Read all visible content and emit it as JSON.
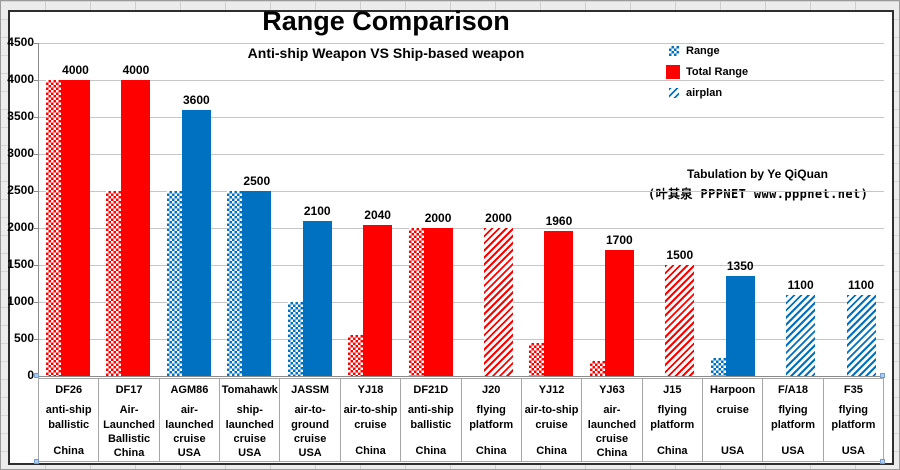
{
  "colors": {
    "red": "#ff0000",
    "blue": "#0070c0",
    "grid": "#c6c6c6",
    "axis": "#8a8a8a",
    "cell_border": "#a6a6a6",
    "handle": "#b5cce8"
  },
  "chart": {
    "title": "Range Comparison",
    "subtitle": "Anti-ship Weapon VS Ship-based weapon"
  },
  "legend": {
    "items": [
      {
        "label": "Range",
        "swatch": "checker-blue"
      },
      {
        "label": "Total Range",
        "swatch": "solid-red"
      },
      {
        "label": "airplan",
        "swatch": "hatch-blue"
      }
    ]
  },
  "annotation": {
    "line1": "Tabulation by Ye QiQuan",
    "line2": "(叶其泉 PPPNET www.pppnet.net)"
  },
  "chart_data": {
    "type": "bar",
    "title": "Range Comparison",
    "subtitle": "Anti-ship Weapon VS Ship-based weapon",
    "ylim": [
      0,
      4500
    ],
    "ytick_step": 500,
    "yticks": [
      "4500",
      "4000",
      "3500",
      "3000",
      "2500",
      "2000",
      "1500",
      "1000",
      "500",
      "0"
    ],
    "grid": true,
    "legend_position": "top-right",
    "categories": [
      {
        "name": "DF26",
        "type": "anti-ship\nballistic",
        "country": "China",
        "color": "red"
      },
      {
        "name": "DF17",
        "type": "Air-\nLaunched\nBallistic",
        "country": "China",
        "color": "red"
      },
      {
        "name": "AGM86",
        "type": "air-\nlaunched\ncruise",
        "country": "USA",
        "color": "blue"
      },
      {
        "name": "Tomahawk",
        "type": "ship-\nlaunched\ncruise",
        "country": "USA",
        "color": "blue"
      },
      {
        "name": "JASSM",
        "type": "air-to-\nground\ncruise",
        "country": "USA",
        "color": "blue"
      },
      {
        "name": "YJ18",
        "type": "air-to-ship\ncruise",
        "country": "China",
        "color": "red"
      },
      {
        "name": "DF21D",
        "type": "anti-ship\nballistic",
        "country": "China",
        "color": "red"
      },
      {
        "name": "J20",
        "type": "flying\nplatform",
        "country": "China",
        "color": "red"
      },
      {
        "name": "YJ12",
        "type": "air-to-ship\ncruise",
        "country": "China",
        "color": "red"
      },
      {
        "name": "YJ63",
        "type": "air-\nlaunched\ncruise",
        "country": "China",
        "color": "red"
      },
      {
        "name": "J15",
        "type": "flying\nplatform",
        "country": "China",
        "color": "red"
      },
      {
        "name": "Harpoon",
        "type": "cruise",
        "country": "USA",
        "color": "blue"
      },
      {
        "name": "F/A18",
        "type": "flying\nplatform",
        "country": "USA",
        "color": "blue"
      },
      {
        "name": "F35",
        "type": "flying\nplatform",
        "country": "USA",
        "color": "blue"
      }
    ],
    "series": [
      {
        "name": "Range",
        "pattern": "checker",
        "values": [
          4000,
          2500,
          2500,
          2500,
          1000,
          550,
          2000,
          null,
          450,
          200,
          null,
          250,
          null,
          null
        ]
      },
      {
        "name": "Total Range",
        "pattern": "solid",
        "values": [
          4000,
          4000,
          3600,
          2500,
          2100,
          2040,
          2000,
          null,
          1960,
          1700,
          null,
          1350,
          null,
          null
        ]
      },
      {
        "name": "airplan",
        "pattern": "hatch",
        "values": [
          null,
          null,
          null,
          null,
          null,
          null,
          null,
          2000,
          null,
          null,
          1500,
          null,
          1100,
          1100
        ]
      }
    ],
    "data_labels": [
      4000,
      4000,
      3600,
      2500,
      2100,
      2040,
      2000,
      2000,
      1960,
      1700,
      1500,
      1350,
      1100,
      1100
    ]
  }
}
